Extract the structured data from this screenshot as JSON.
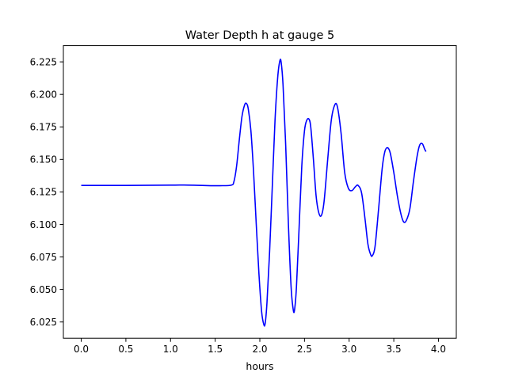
{
  "chart_data": {
    "type": "line",
    "title": "Water Depth h at gauge 5",
    "xlabel": "hours",
    "ylabel": "",
    "xlim": [
      -0.2,
      4.2
    ],
    "ylim": [
      6.0125,
      6.2375
    ],
    "x_ticks": [
      0.0,
      0.5,
      1.0,
      1.5,
      2.0,
      2.5,
      3.0,
      3.5,
      4.0
    ],
    "x_tick_labels": [
      "0.0",
      "0.5",
      "1.0",
      "1.5",
      "2.0",
      "2.5",
      "3.0",
      "3.5",
      "4.0"
    ],
    "y_ticks": [
      6.025,
      6.05,
      6.075,
      6.1,
      6.125,
      6.15,
      6.175,
      6.2,
      6.225
    ],
    "y_tick_labels": [
      "6.025",
      "6.050",
      "6.075",
      "6.100",
      "6.125",
      "6.150",
      "6.175",
      "6.200",
      "6.225"
    ],
    "grid": false,
    "line_color": "#0000ff",
    "series": [
      {
        "points": [
          [
            0.0,
            6.13
          ],
          [
            0.5,
            6.13
          ],
          [
            1.0,
            6.1302
          ],
          [
            1.15,
            6.1303
          ],
          [
            1.3,
            6.1301
          ],
          [
            1.45,
            6.1298
          ],
          [
            1.55,
            6.1298
          ],
          [
            1.68,
            6.1302
          ],
          [
            1.71,
            6.133
          ],
          [
            1.74,
            6.145
          ],
          [
            1.77,
            6.165
          ],
          [
            1.8,
            6.183
          ],
          [
            1.83,
            6.192
          ],
          [
            1.85,
            6.193
          ],
          [
            1.87,
            6.189
          ],
          [
            1.9,
            6.172
          ],
          [
            1.93,
            6.14
          ],
          [
            1.96,
            6.1
          ],
          [
            1.99,
            6.062
          ],
          [
            2.02,
            6.033
          ],
          [
            2.045,
            6.023
          ],
          [
            2.06,
            6.024
          ],
          [
            2.08,
            6.04
          ],
          [
            2.11,
            6.08
          ],
          [
            2.14,
            6.13
          ],
          [
            2.17,
            6.18
          ],
          [
            2.2,
            6.213
          ],
          [
            2.225,
            6.226
          ],
          [
            2.24,
            6.224
          ],
          [
            2.26,
            6.207
          ],
          [
            2.29,
            6.16
          ],
          [
            2.32,
            6.1
          ],
          [
            2.35,
            6.052
          ],
          [
            2.375,
            6.034
          ],
          [
            2.39,
            6.035
          ],
          [
            2.41,
            6.052
          ],
          [
            2.44,
            6.098
          ],
          [
            2.47,
            6.145
          ],
          [
            2.5,
            6.172
          ],
          [
            2.525,
            6.18
          ],
          [
            2.55,
            6.181
          ],
          [
            2.57,
            6.175
          ],
          [
            2.6,
            6.15
          ],
          [
            2.63,
            6.122
          ],
          [
            2.66,
            6.109
          ],
          [
            2.69,
            6.107
          ],
          [
            2.72,
            6.118
          ],
          [
            2.76,
            6.15
          ],
          [
            2.8,
            6.18
          ],
          [
            2.84,
            6.192
          ],
          [
            2.87,
            6.19
          ],
          [
            2.91,
            6.17
          ],
          [
            2.95,
            6.14
          ],
          [
            2.99,
            6.128
          ],
          [
            3.03,
            6.126
          ],
          [
            3.07,
            6.129
          ],
          [
            3.1,
            6.13
          ],
          [
            3.14,
            6.124
          ],
          [
            3.18,
            6.103
          ],
          [
            3.21,
            6.085
          ],
          [
            3.24,
            6.077
          ],
          [
            3.26,
            6.076
          ],
          [
            3.29,
            6.083
          ],
          [
            3.33,
            6.112
          ],
          [
            3.37,
            6.143
          ],
          [
            3.4,
            6.156
          ],
          [
            3.43,
            6.159
          ],
          [
            3.46,
            6.155
          ],
          [
            3.5,
            6.14
          ],
          [
            3.54,
            6.122
          ],
          [
            3.58,
            6.108
          ],
          [
            3.61,
            6.102
          ],
          [
            3.64,
            6.103
          ],
          [
            3.68,
            6.112
          ],
          [
            3.72,
            6.133
          ],
          [
            3.76,
            6.152
          ],
          [
            3.79,
            6.161
          ],
          [
            3.82,
            6.162
          ],
          [
            3.845,
            6.158
          ],
          [
            3.86,
            6.156
          ]
        ]
      }
    ]
  }
}
